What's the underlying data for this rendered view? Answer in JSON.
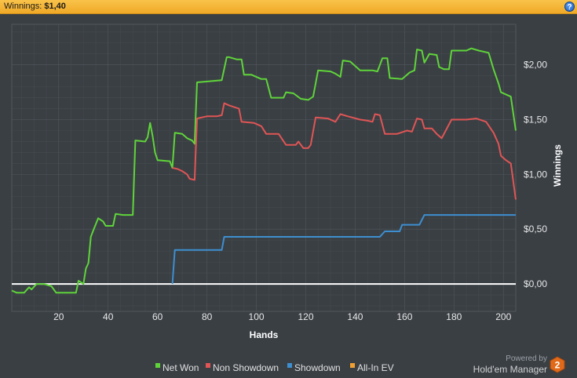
{
  "header": {
    "label": "Winnings:",
    "value": "$1,40",
    "help_icon": "help-icon"
  },
  "footer": {
    "powered_by": "Powered by",
    "brand": "Hold'em Manager",
    "logo_text": "2"
  },
  "colors": {
    "background": "#3a3f44",
    "grid": "#52575c",
    "zero_line": "#ffffff",
    "net_won": "#5fd43a",
    "non_showdown": "#e05555",
    "showdown": "#3d8fd0",
    "all_in_ev": "#f0a030"
  },
  "chart_data": {
    "type": "line",
    "xlabel": "Hands",
    "ylabel": "Winnings",
    "xlim": [
      1,
      205
    ],
    "ylim": [
      -0.25,
      2.37
    ],
    "x_ticks": [
      20,
      40,
      60,
      80,
      100,
      120,
      140,
      160,
      180,
      200
    ],
    "x_tick_labels": [
      "20",
      "40",
      "60",
      "80",
      "100",
      "120",
      "140",
      "160",
      "180",
      "200"
    ],
    "y_ticks": [
      0,
      0.5,
      1,
      1.5,
      2
    ],
    "y_tick_labels": [
      "$0,00",
      "$0,50",
      "$1,00",
      "$1,50",
      "$2,00"
    ],
    "grid": true,
    "legend_position": "bottom-center",
    "legend": [
      "Net Won",
      "Non Showdown",
      "Showdown",
      "All-In EV"
    ],
    "series": [
      {
        "name": "Net Won",
        "color": "#5fd43a",
        "points": [
          [
            1,
            -0.06
          ],
          [
            3,
            -0.08
          ],
          [
            6,
            -0.08
          ],
          [
            8,
            -0.03
          ],
          [
            9,
            -0.05
          ],
          [
            11,
            0.0
          ],
          [
            14,
            0.0
          ],
          [
            17,
            -0.02
          ],
          [
            19,
            -0.08
          ],
          [
            27,
            -0.08
          ],
          [
            28,
            0.03
          ],
          [
            30,
            0.0
          ],
          [
            31,
            0.14
          ],
          [
            32,
            0.19
          ],
          [
            33,
            0.43
          ],
          [
            34,
            0.49
          ],
          [
            36,
            0.6
          ],
          [
            38,
            0.57
          ],
          [
            39,
            0.53
          ],
          [
            42,
            0.53
          ],
          [
            43,
            0.64
          ],
          [
            46,
            0.63
          ],
          [
            50,
            0.63
          ],
          [
            51,
            1.31
          ],
          [
            55,
            1.3
          ],
          [
            56,
            1.34
          ],
          [
            57,
            1.47
          ],
          [
            58,
            1.35
          ],
          [
            59,
            1.2
          ],
          [
            60,
            1.13
          ],
          [
            65,
            1.12
          ],
          [
            66,
            1.06
          ],
          [
            67,
            1.38
          ],
          [
            70,
            1.37
          ],
          [
            72,
            1.33
          ],
          [
            74,
            1.31
          ],
          [
            75,
            1.28
          ],
          [
            76,
            1.84
          ],
          [
            81,
            1.85
          ],
          [
            86,
            1.86
          ],
          [
            88,
            2.07
          ],
          [
            89,
            2.07
          ],
          [
            92,
            2.05
          ],
          [
            94,
            2.05
          ],
          [
            95,
            1.91
          ],
          [
            98,
            1.91
          ],
          [
            102,
            1.87
          ],
          [
            104,
            1.87
          ],
          [
            106,
            1.7
          ],
          [
            111,
            1.7
          ],
          [
            112,
            1.75
          ],
          [
            115,
            1.74
          ],
          [
            118,
            1.69
          ],
          [
            121,
            1.68
          ],
          [
            123,
            1.71
          ],
          [
            125,
            1.95
          ],
          [
            130,
            1.94
          ],
          [
            132,
            1.92
          ],
          [
            134,
            1.89
          ],
          [
            135,
            2.04
          ],
          [
            138,
            2.03
          ],
          [
            142,
            1.95
          ],
          [
            147,
            1.95
          ],
          [
            149,
            1.94
          ],
          [
            151,
            2.06
          ],
          [
            153,
            2.06
          ],
          [
            154,
            1.88
          ],
          [
            159,
            1.87
          ],
          [
            162,
            1.93
          ],
          [
            164,
            1.95
          ],
          [
            165,
            2.14
          ],
          [
            167,
            2.13
          ],
          [
            168,
            2.02
          ],
          [
            170,
            2.1
          ],
          [
            173,
            2.09
          ],
          [
            174,
            1.98
          ],
          [
            176,
            1.96
          ],
          [
            178,
            1.96
          ],
          [
            179,
            2.13
          ],
          [
            185,
            2.13
          ],
          [
            187,
            2.15
          ],
          [
            190,
            2.13
          ],
          [
            194,
            2.11
          ],
          [
            196,
            1.96
          ],
          [
            198,
            1.83
          ],
          [
            199,
            1.75
          ],
          [
            201,
            1.73
          ],
          [
            203,
            1.71
          ],
          [
            205,
            1.4
          ]
        ]
      },
      {
        "name": "Non Showdown",
        "color": "#e05555",
        "points": [
          [
            66,
            1.06
          ],
          [
            68,
            1.05
          ],
          [
            70,
            1.03
          ],
          [
            72,
            1.0
          ],
          [
            73,
            0.96
          ],
          [
            75,
            0.95
          ],
          [
            76,
            1.51
          ],
          [
            80,
            1.53
          ],
          [
            84,
            1.53
          ],
          [
            86,
            1.54
          ],
          [
            87,
            1.65
          ],
          [
            89,
            1.63
          ],
          [
            93,
            1.6
          ],
          [
            94,
            1.48
          ],
          [
            99,
            1.47
          ],
          [
            102,
            1.44
          ],
          [
            104,
            1.37
          ],
          [
            109,
            1.37
          ],
          [
            112,
            1.27
          ],
          [
            116,
            1.27
          ],
          [
            117,
            1.3
          ],
          [
            119,
            1.24
          ],
          [
            121,
            1.24
          ],
          [
            122,
            1.27
          ],
          [
            124,
            1.52
          ],
          [
            129,
            1.51
          ],
          [
            132,
            1.48
          ],
          [
            134,
            1.55
          ],
          [
            137,
            1.53
          ],
          [
            142,
            1.5
          ],
          [
            145,
            1.49
          ],
          [
            147,
            1.48
          ],
          [
            148,
            1.55
          ],
          [
            150,
            1.54
          ],
          [
            152,
            1.37
          ],
          [
            157,
            1.37
          ],
          [
            161,
            1.4
          ],
          [
            163,
            1.39
          ],
          [
            165,
            1.51
          ],
          [
            167,
            1.5
          ],
          [
            168,
            1.42
          ],
          [
            171,
            1.42
          ],
          [
            173,
            1.37
          ],
          [
            175,
            1.33
          ],
          [
            179,
            1.5
          ],
          [
            185,
            1.5
          ],
          [
            189,
            1.51
          ],
          [
            193,
            1.48
          ],
          [
            196,
            1.38
          ],
          [
            198,
            1.28
          ],
          [
            199,
            1.17
          ],
          [
            201,
            1.13
          ],
          [
            203,
            1.1
          ],
          [
            205,
            0.77
          ]
        ]
      },
      {
        "name": "Showdown",
        "color": "#3d8fd0",
        "points": [
          [
            66,
            0.0
          ],
          [
            67,
            0.31
          ],
          [
            77,
            0.31
          ],
          [
            78,
            0.31
          ],
          [
            86,
            0.31
          ],
          [
            87,
            0.43
          ],
          [
            150,
            0.43
          ],
          [
            152,
            0.48
          ],
          [
            158,
            0.48
          ],
          [
            159,
            0.54
          ],
          [
            166,
            0.54
          ],
          [
            168,
            0.63
          ],
          [
            205,
            0.63
          ]
        ]
      },
      {
        "name": "All-In EV",
        "color": "#f0a030",
        "points": []
      }
    ]
  }
}
